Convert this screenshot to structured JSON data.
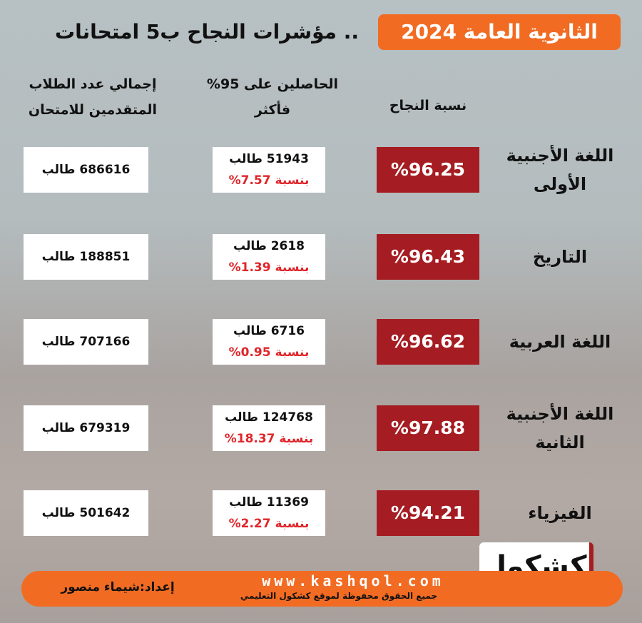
{
  "title": {
    "highlight": "الثانوية العامة 2024",
    "rest": ".. مؤشرات النجاح ب5 امتحانات"
  },
  "headers": {
    "pass_rate": "نسبة النجاح",
    "top_line1": "الحاصلين على 95%",
    "top_line2": "فأكثر",
    "total_line1": "إجمالي عدد الطلاب",
    "total_line2": "المتقدمين للامتحان"
  },
  "rows": [
    {
      "subject_line1": "اللغة الأجنبية",
      "subject_line2": "الأولى",
      "pass_rate": "%96.25",
      "top_count": "51943 طالب",
      "top_ratio": "بنسبة 7.57%",
      "total": "686616 طالب"
    },
    {
      "subject_line1": "التاريخ",
      "subject_line2": "",
      "pass_rate": "%96.43",
      "top_count": "2618 طالب",
      "top_ratio": "بنسبة 1.39%",
      "total": "188851 طالب"
    },
    {
      "subject_line1": "اللغة العربية",
      "subject_line2": "",
      "pass_rate": "%96.62",
      "top_count": "6716 طالب",
      "top_ratio": "بنسبة 0.95%",
      "total": "707166 طالب"
    },
    {
      "subject_line1": "اللغة الأجنبية",
      "subject_line2": "الثانية",
      "pass_rate": "%97.88",
      "top_count": "124768 طالب",
      "top_ratio": "بنسبة 18.37%",
      "total": "679319 طالب"
    },
    {
      "subject_line1": "الفيزياء",
      "subject_line2": "",
      "pass_rate": "%94.21",
      "top_count": "11369 طالب",
      "top_ratio": "بنسبة 2.27%",
      "total": "501642 طالب"
    }
  ],
  "footer": {
    "url": "www.kashqol.com",
    "rights": "جميع الحقوق محفوظة لموقع كشكول التعليمي",
    "author": "إعداد:شيماء منصور",
    "logo": "كشكول"
  },
  "colors": {
    "accent": "#f26b22",
    "pass_box": "#a51c22",
    "ratio_text": "#e0262b"
  }
}
